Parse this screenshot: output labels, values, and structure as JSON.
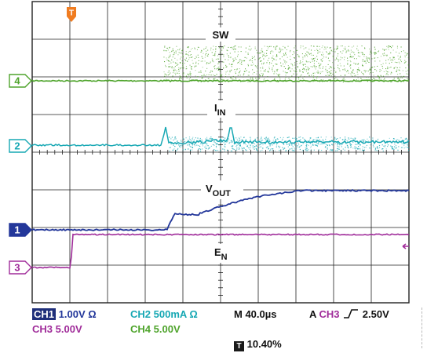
{
  "colors": {
    "ch1": "#23379a",
    "ch2": "#17a8b4",
    "ch3": "#a02c9a",
    "ch4": "#4fa42c",
    "trigger": "#f07c20"
  },
  "channels": [
    {
      "id": "4",
      "color": "#4fa42c"
    },
    {
      "id": "2",
      "color": "#17a8b4"
    },
    {
      "id": "1",
      "color": "#23379a"
    },
    {
      "id": "3",
      "color": "#a02c9a"
    }
  ],
  "trigger_marker": "T",
  "labels": {
    "sw": "SW",
    "iin_main": "I",
    "iin_sub": "IN",
    "vout_main": "V",
    "vout_sub": "OUT",
    "en_main": "E",
    "en_sub": "N"
  },
  "status": {
    "ch1_name": "CH1",
    "ch1_scale": "1.00V Ω",
    "ch2_name": "CH2",
    "ch2_scale": "500mA Ω",
    "ch3_name": "CH3",
    "ch3_scale": "5.00V",
    "ch4_name": "CH4",
    "ch4_scale": "5.00V",
    "timebase": "M 40.0µs",
    "acq": "A",
    "trig_source": "CH3",
    "trig_level": "2.50V",
    "trig_pos": "10.40%"
  }
}
